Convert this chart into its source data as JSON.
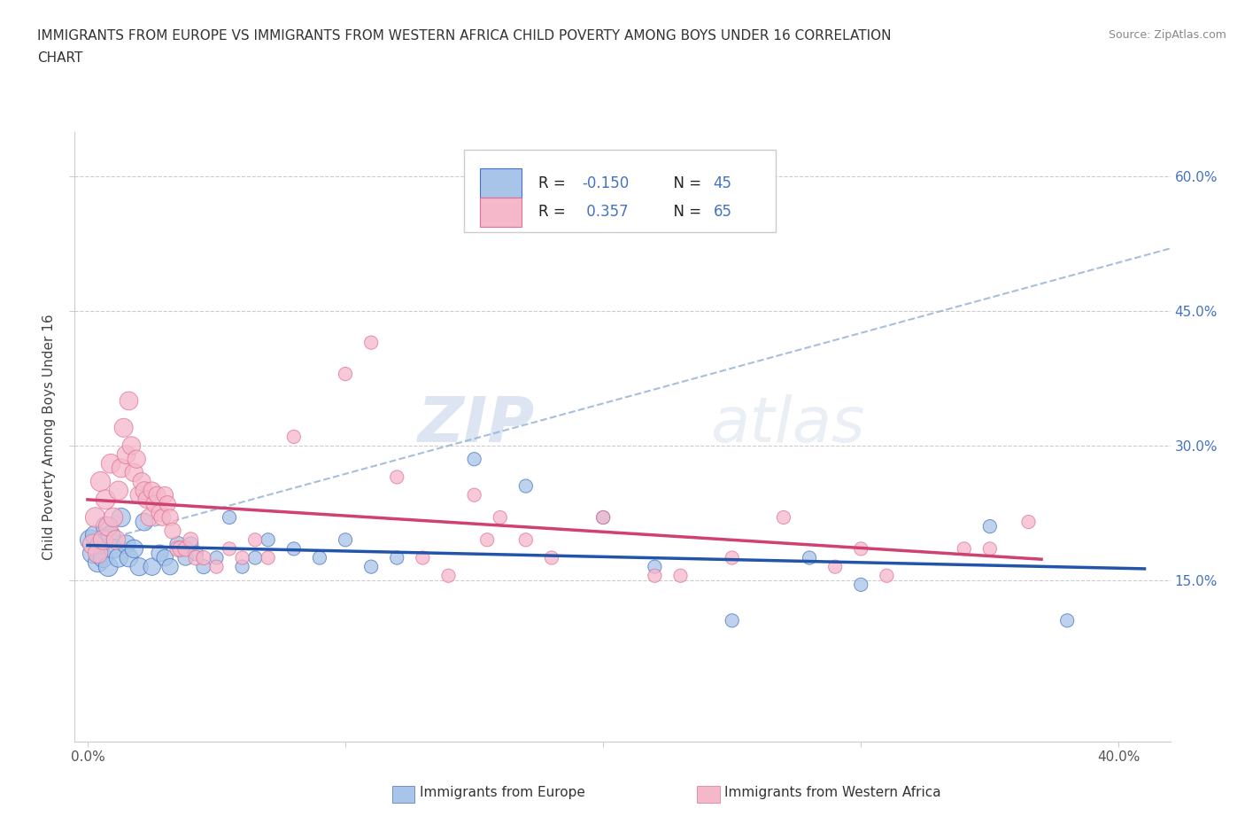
{
  "title_line1": "IMMIGRANTS FROM EUROPE VS IMMIGRANTS FROM WESTERN AFRICA CHILD POVERTY AMONG BOYS UNDER 16 CORRELATION",
  "title_line2": "CHART",
  "source": "Source: ZipAtlas.com",
  "watermark": "ZIPatlas",
  "blue_color": "#a8c4e8",
  "pink_color": "#f5b8cb",
  "blue_edge": "#4472c4",
  "pink_edge": "#e07090",
  "blue_line_color": "#2255aa",
  "pink_line_color": "#d04070",
  "dashed_line_color": "#8fafd4",
  "xlim": [
    -0.005,
    0.42
  ],
  "ylim": [
    -0.03,
    0.65
  ],
  "xticks": [
    0.0,
    0.1,
    0.2,
    0.3,
    0.4
  ],
  "xlabels": [
    "0.0%",
    "",
    "",
    "",
    "40.0%"
  ],
  "yticks": [
    0.15,
    0.3,
    0.45,
    0.6
  ],
  "ylabels": [
    "15.0%",
    "30.0%",
    "45.0%",
    "60.0%"
  ],
  "legend_r1": "R = -0.150",
  "legend_n1": "N = 45",
  "legend_r2": "R =  0.357",
  "legend_n2": "N = 65",
  "blue_scatter": [
    [
      0.001,
      0.195
    ],
    [
      0.002,
      0.18
    ],
    [
      0.003,
      0.2
    ],
    [
      0.004,
      0.17
    ],
    [
      0.005,
      0.19
    ],
    [
      0.006,
      0.175
    ],
    [
      0.007,
      0.21
    ],
    [
      0.008,
      0.165
    ],
    [
      0.009,
      0.2
    ],
    [
      0.01,
      0.185
    ],
    [
      0.012,
      0.175
    ],
    [
      0.013,
      0.22
    ],
    [
      0.015,
      0.19
    ],
    [
      0.016,
      0.175
    ],
    [
      0.018,
      0.185
    ],
    [
      0.02,
      0.165
    ],
    [
      0.022,
      0.215
    ],
    [
      0.025,
      0.165
    ],
    [
      0.028,
      0.18
    ],
    [
      0.03,
      0.175
    ],
    [
      0.032,
      0.165
    ],
    [
      0.035,
      0.19
    ],
    [
      0.038,
      0.175
    ],
    [
      0.04,
      0.19
    ],
    [
      0.042,
      0.18
    ],
    [
      0.045,
      0.165
    ],
    [
      0.05,
      0.175
    ],
    [
      0.055,
      0.22
    ],
    [
      0.06,
      0.165
    ],
    [
      0.065,
      0.175
    ],
    [
      0.07,
      0.195
    ],
    [
      0.08,
      0.185
    ],
    [
      0.09,
      0.175
    ],
    [
      0.1,
      0.195
    ],
    [
      0.11,
      0.165
    ],
    [
      0.12,
      0.175
    ],
    [
      0.15,
      0.285
    ],
    [
      0.17,
      0.255
    ],
    [
      0.2,
      0.22
    ],
    [
      0.22,
      0.165
    ],
    [
      0.25,
      0.105
    ],
    [
      0.28,
      0.175
    ],
    [
      0.3,
      0.145
    ],
    [
      0.35,
      0.21
    ],
    [
      0.38,
      0.105
    ]
  ],
  "pink_scatter": [
    [
      0.002,
      0.19
    ],
    [
      0.003,
      0.22
    ],
    [
      0.004,
      0.18
    ],
    [
      0.005,
      0.26
    ],
    [
      0.006,
      0.195
    ],
    [
      0.007,
      0.24
    ],
    [
      0.008,
      0.21
    ],
    [
      0.009,
      0.28
    ],
    [
      0.01,
      0.22
    ],
    [
      0.011,
      0.195
    ],
    [
      0.012,
      0.25
    ],
    [
      0.013,
      0.275
    ],
    [
      0.014,
      0.32
    ],
    [
      0.015,
      0.29
    ],
    [
      0.016,
      0.35
    ],
    [
      0.017,
      0.3
    ],
    [
      0.018,
      0.27
    ],
    [
      0.019,
      0.285
    ],
    [
      0.02,
      0.245
    ],
    [
      0.021,
      0.26
    ],
    [
      0.022,
      0.25
    ],
    [
      0.023,
      0.24
    ],
    [
      0.024,
      0.22
    ],
    [
      0.025,
      0.25
    ],
    [
      0.026,
      0.235
    ],
    [
      0.027,
      0.245
    ],
    [
      0.028,
      0.225
    ],
    [
      0.029,
      0.22
    ],
    [
      0.03,
      0.245
    ],
    [
      0.031,
      0.235
    ],
    [
      0.032,
      0.22
    ],
    [
      0.033,
      0.205
    ],
    [
      0.035,
      0.185
    ],
    [
      0.036,
      0.185
    ],
    [
      0.038,
      0.185
    ],
    [
      0.04,
      0.195
    ],
    [
      0.042,
      0.175
    ],
    [
      0.045,
      0.175
    ],
    [
      0.05,
      0.165
    ],
    [
      0.055,
      0.185
    ],
    [
      0.06,
      0.175
    ],
    [
      0.065,
      0.195
    ],
    [
      0.07,
      0.175
    ],
    [
      0.08,
      0.31
    ],
    [
      0.1,
      0.38
    ],
    [
      0.11,
      0.415
    ],
    [
      0.12,
      0.265
    ],
    [
      0.13,
      0.175
    ],
    [
      0.14,
      0.155
    ],
    [
      0.15,
      0.245
    ],
    [
      0.155,
      0.195
    ],
    [
      0.16,
      0.22
    ],
    [
      0.17,
      0.195
    ],
    [
      0.18,
      0.175
    ],
    [
      0.2,
      0.22
    ],
    [
      0.22,
      0.155
    ],
    [
      0.23,
      0.155
    ],
    [
      0.25,
      0.175
    ],
    [
      0.27,
      0.22
    ],
    [
      0.29,
      0.165
    ],
    [
      0.3,
      0.185
    ],
    [
      0.31,
      0.155
    ],
    [
      0.34,
      0.185
    ],
    [
      0.35,
      0.185
    ],
    [
      0.365,
      0.215
    ]
  ],
  "background_color": "#ffffff"
}
